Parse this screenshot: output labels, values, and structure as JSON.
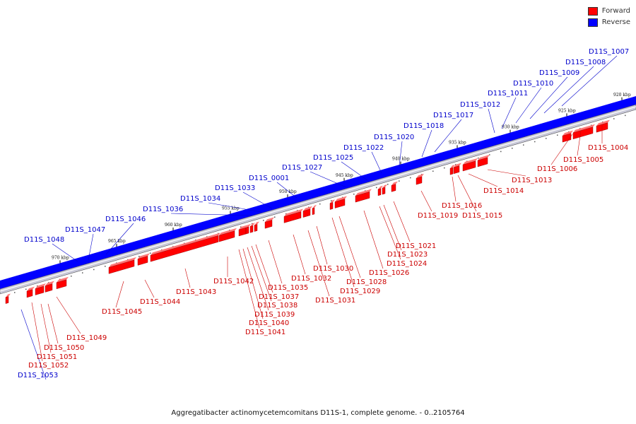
{
  "legend": {
    "forward_label": "Forward",
    "reverse_label": "Reverse",
    "forward_color": "#ff0000",
    "reverse_color": "#0000ff"
  },
  "caption": "Aggregatibacter actinomycetemcomitans D11S-1, complete genome. - 0..2105764",
  "colors": {
    "forward": "#ff0000",
    "reverse": "#0000ff",
    "label_forward": "#cc0000",
    "label_reverse": "#0000cc"
  },
  "ruler_ticks": [
    "970 kbp",
    "965 kbp",
    "960 kbp",
    "955 kbp",
    "950 kbp",
    "945 kbp",
    "940 kbp",
    "935 kbp",
    "930 kbp",
    "925 kbp",
    "920 kbp"
  ],
  "reverse_genes": [
    "D11S_1053",
    "D11S_1048",
    "D11S_1047",
    "D11S_1046",
    "D11S_1036",
    "D11S_1034",
    "D11S_1033",
    "D11S_0001",
    "D11S_1027",
    "D11S_1025",
    "D11S_1022",
    "D11S_1020",
    "D11S_1018",
    "D11S_1017",
    "D11S_1012",
    "D11S_1011",
    "D11S_1010",
    "D11S_1009",
    "D11S_1008",
    "D11S_1007"
  ],
  "forward_genes": [
    "D11S_1052",
    "D11S_1051",
    "D11S_1050",
    "D11S_1049",
    "D11S_1045",
    "D11S_1044",
    "D11S_1043",
    "D11S_1042",
    "D11S_1041",
    "D11S_1040",
    "D11S_1039",
    "D11S_1038",
    "D11S_1037",
    "D11S_1035",
    "D11S_1032",
    "D11S_1031",
    "D11S_1030",
    "D11S_1029",
    "D11S_1028",
    "D11S_1026",
    "D11S_1024",
    "D11S_1023",
    "D11S_1021",
    "D11S_1019",
    "D11S_1016",
    "D11S_1015",
    "D11S_1014",
    "D11S_1013",
    "D11S_1006",
    "D11S_1005",
    "D11S_1004"
  ]
}
